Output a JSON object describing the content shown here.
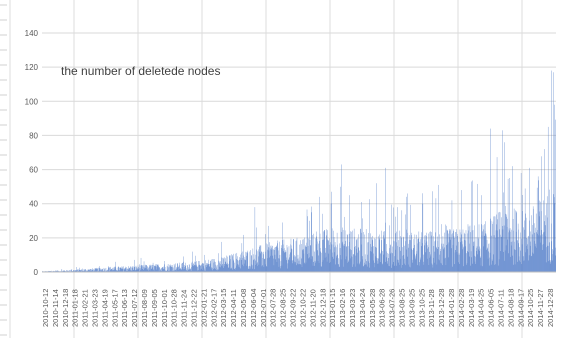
{
  "chart_data": {
    "type": "bar",
    "title": "the number of deletede nodes",
    "xlabel": "",
    "ylabel": "",
    "ylim": [
      0,
      140
    ],
    "yticks": [
      0,
      20,
      40,
      60,
      80,
      100,
      120,
      140
    ],
    "x_start": "2010-10-12",
    "x_end": "2014-12-28",
    "x_tick_interval_days": 32,
    "grid": "horizontal",
    "legend": "none",
    "color": "#4472C4",
    "x_ticks": [
      "2010-10-12",
      "2010-11-14",
      "2010-12-18",
      "2011-01-18",
      "2011-02-21",
      "2011-03-23",
      "2011-04-19",
      "2011-05-17",
      "2011-06-13",
      "2011-07-12",
      "2011-08-09",
      "2011-09-05",
      "2011-10-01",
      "2011-10-28",
      "2011-11-24",
      "2011-12-22",
      "2012-01-21",
      "2012-02-17",
      "2012-03-15",
      "2012-04-11",
      "2012-05-08",
      "2012-06-04",
      "2012-07-01",
      "2012-07-28",
      "2012-08-25",
      "2012-09-22",
      "2012-10-22",
      "2012-11-20",
      "2012-12-18",
      "2013-01-15",
      "2013-02-16",
      "2013-03-23",
      "2013-04-24",
      "2013-05-28",
      "2013-06-28",
      "2013-07-26",
      "2013-08-25",
      "2013-09-25",
      "2013-10-25",
      "2013-11-28",
      "2013-12-28",
      "2014-01-28",
      "2014-02-28",
      "2014-03-19",
      "2014-04-25",
      "2014-06-05",
      "2014-07-11",
      "2014-08-18",
      "2014-09-17",
      "2014-10-25",
      "2014-11-27",
      "2014-12-28"
    ],
    "series": [
      {
        "name": "",
        "daily_trend": [
          {
            "date": "2010-10-12",
            "value": 0.3
          },
          {
            "date": "2011-01-20",
            "value": 1
          },
          {
            "date": "2011-05-01",
            "value": 2
          },
          {
            "date": "2011-09-01",
            "value": 3
          },
          {
            "date": "2012-01-01",
            "value": 4
          },
          {
            "date": "2012-04-01",
            "value": 6
          },
          {
            "date": "2012-06-15",
            "value": 9
          },
          {
            "date": "2012-09-01",
            "value": 12
          },
          {
            "date": "2012-12-01",
            "value": 14
          },
          {
            "date": "2013-03-01",
            "value": 18
          },
          {
            "date": "2013-06-01",
            "value": 17
          },
          {
            "date": "2013-09-01",
            "value": 16
          },
          {
            "date": "2013-12-01",
            "value": 16
          },
          {
            "date": "2014-03-01",
            "value": 17
          },
          {
            "date": "2014-06-01",
            "value": 20
          },
          {
            "date": "2014-08-01",
            "value": 26
          },
          {
            "date": "2014-10-01",
            "value": 24
          },
          {
            "date": "2014-12-28",
            "value": 34
          }
        ],
        "peaks": [
          {
            "date": "2011-02-10",
            "value": 2
          },
          {
            "date": "2011-05-05",
            "value": 3
          },
          {
            "date": "2011-08-20",
            "value": 4
          },
          {
            "date": "2011-12-10",
            "value": 6
          },
          {
            "date": "2012-02-10",
            "value": 10
          },
          {
            "date": "2012-04-20",
            "value": 9
          },
          {
            "date": "2012-07-10",
            "value": 38
          },
          {
            "date": "2012-08-20",
            "value": 27
          },
          {
            "date": "2012-10-01",
            "value": 29
          },
          {
            "date": "2012-12-20",
            "value": 30
          },
          {
            "date": "2013-01-20",
            "value": 44
          },
          {
            "date": "2013-02-25",
            "value": 47
          },
          {
            "date": "2013-03-26",
            "value": 63
          },
          {
            "date": "2013-04-20",
            "value": 45
          },
          {
            "date": "2013-05-25",
            "value": 41
          },
          {
            "date": "2013-07-10",
            "value": 52
          },
          {
            "date": "2013-08-05",
            "value": 61
          },
          {
            "date": "2013-09-10",
            "value": 38
          },
          {
            "date": "2013-10-10",
            "value": 46
          },
          {
            "date": "2013-11-25",
            "value": 40
          },
          {
            "date": "2014-01-10",
            "value": 51
          },
          {
            "date": "2014-02-20",
            "value": 42
          },
          {
            "date": "2014-03-20",
            "value": 48
          },
          {
            "date": "2014-04-20",
            "value": 53
          },
          {
            "date": "2014-05-20",
            "value": 45
          },
          {
            "date": "2014-06-15",
            "value": 84
          },
          {
            "date": "2014-07-22",
            "value": 83
          },
          {
            "date": "2014-07-28",
            "value": 76
          },
          {
            "date": "2014-08-20",
            "value": 62
          },
          {
            "date": "2014-09-15",
            "value": 58
          },
          {
            "date": "2014-10-10",
            "value": 61
          },
          {
            "date": "2014-11-05",
            "value": 56
          },
          {
            "date": "2014-11-25",
            "value": 72
          },
          {
            "date": "2014-12-05",
            "value": 85
          },
          {
            "date": "2014-12-15",
            "value": 118
          },
          {
            "date": "2014-12-20",
            "value": 117
          },
          {
            "date": "2014-12-24",
            "value": 98
          }
        ]
      }
    ]
  }
}
